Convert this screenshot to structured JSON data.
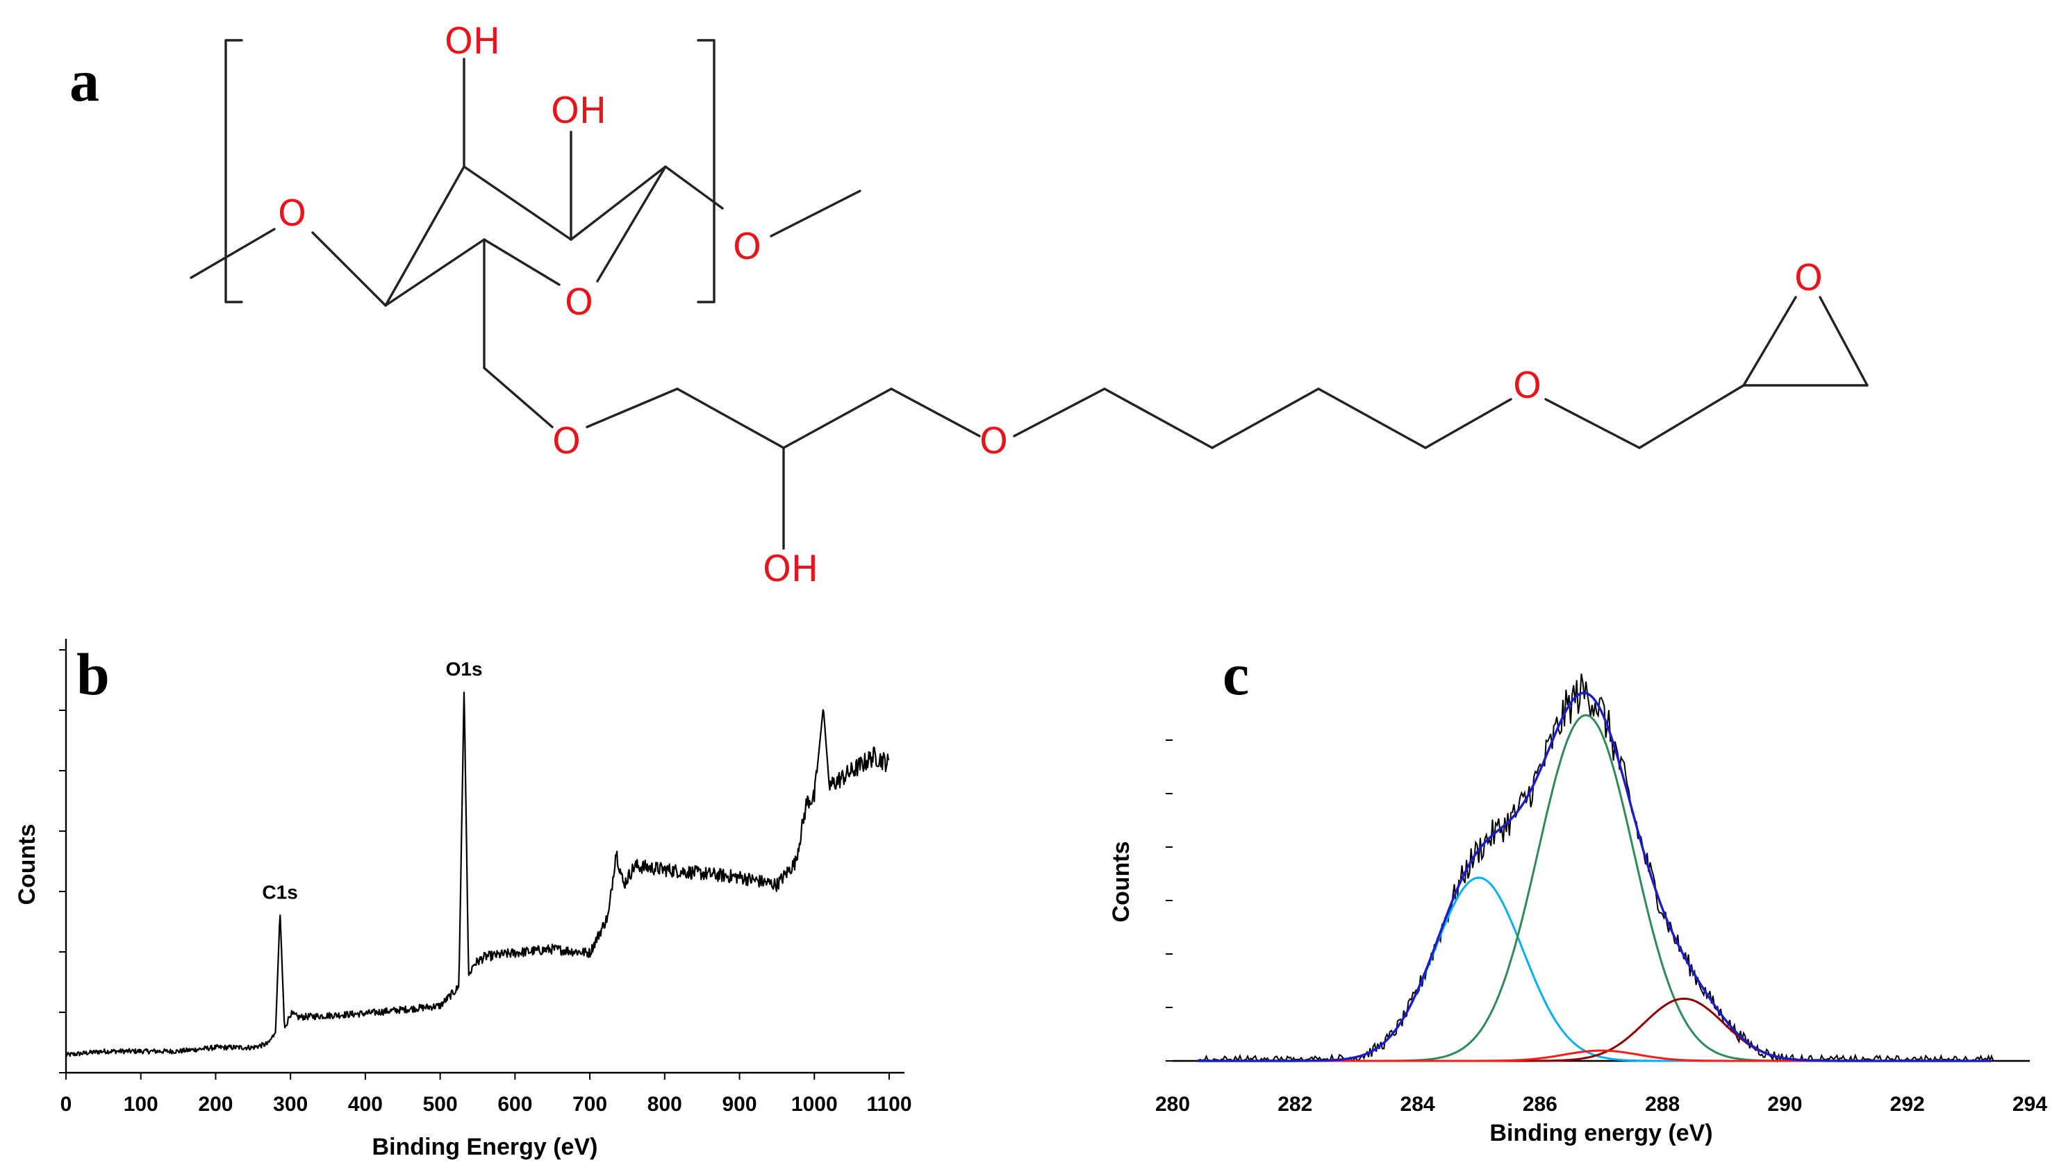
{
  "panels": {
    "a": "a",
    "b": "b",
    "c": "c"
  },
  "structure": {
    "atoms": {
      "oh_top": "OH",
      "oh_mid": "OH",
      "o_left": "O",
      "o_right": "O",
      "o_ring": "O",
      "o_chain1": "O",
      "o_chain2": "O",
      "o_chain3": "O",
      "o_epoxide": "O",
      "oh_bottom": "OH"
    },
    "atom_color": "#e8141c",
    "bond_color": "#222222"
  },
  "chart_data": [
    {
      "panel": "b",
      "type": "line",
      "xlabel": "Binding Energy (eV)",
      "ylabel": "Counts",
      "xlim": [
        0,
        1100
      ],
      "xticks": [
        0,
        100,
        200,
        300,
        400,
        500,
        600,
        700,
        800,
        900,
        1000,
        1100
      ],
      "y_tick_labels_shown": false,
      "grid": false,
      "series_color": "#000000",
      "annotations": [
        {
          "text": "C1s",
          "x": 286
        },
        {
          "text": "O1s",
          "x": 532
        }
      ],
      "series": [
        {
          "x": [
            0,
            50,
            100,
            150,
            200,
            250,
            270,
            280,
            286,
            292,
            300,
            310,
            400,
            450,
            500,
            525,
            532,
            538,
            545,
            560,
            600,
            650,
            700,
            725,
            735,
            745,
            760,
            800,
            850,
            900,
            950,
            975,
            990,
            1000,
            1012,
            1020,
            1050,
            1080,
            1100
          ],
          "y": [
            0.01,
            0.02,
            0.02,
            0.02,
            0.03,
            0.03,
            0.04,
            0.07,
            0.39,
            0.08,
            0.12,
            0.11,
            0.12,
            0.13,
            0.14,
            0.19,
            0.98,
            0.22,
            0.25,
            0.27,
            0.28,
            0.29,
            0.28,
            0.38,
            0.55,
            0.46,
            0.51,
            0.5,
            0.49,
            0.48,
            0.46,
            0.52,
            0.68,
            0.69,
            0.93,
            0.72,
            0.76,
            0.8,
            0.78
          ]
        }
      ]
    },
    {
      "panel": "c",
      "type": "line",
      "xlabel": "Binding energy (eV)",
      "ylabel": "Counts",
      "xlim": [
        280,
        294
      ],
      "xticks": [
        280,
        282,
        284,
        286,
        288,
        290,
        292,
        294
      ],
      "y_tick_labels_shown": false,
      "grid": false,
      "series": [
        {
          "color": "#1c1cc8",
          "peaks": [
            {
              "center": 285.0,
              "height": 0.53,
              "sigma": 0.72
            },
            {
              "center": 286.75,
              "height": 1.0,
              "sigma": 0.78
            },
            {
              "center": 288.35,
              "height": 0.18,
              "sigma": 0.65
            },
            {
              "center": 287.0,
              "height": 0.03,
              "sigma": 0.6
            }
          ]
        },
        {
          "color": "#00b0f0",
          "peaks": [
            {
              "center": 285.0,
              "height": 0.53,
              "sigma": 0.72
            }
          ]
        },
        {
          "color": "#2e8b57",
          "peaks": [
            {
              "center": 286.75,
              "height": 1.0,
              "sigma": 0.78
            }
          ]
        },
        {
          "color": "#8b0000",
          "peaks": [
            {
              "center": 288.35,
              "height": 0.18,
              "sigma": 0.65
            }
          ]
        },
        {
          "color": "#ff1a1a",
          "peaks": [
            {
              "center": 287.0,
              "height": 0.03,
              "sigma": 0.6
            }
          ]
        }
      ],
      "raw_series_color": "#000000"
    }
  ]
}
